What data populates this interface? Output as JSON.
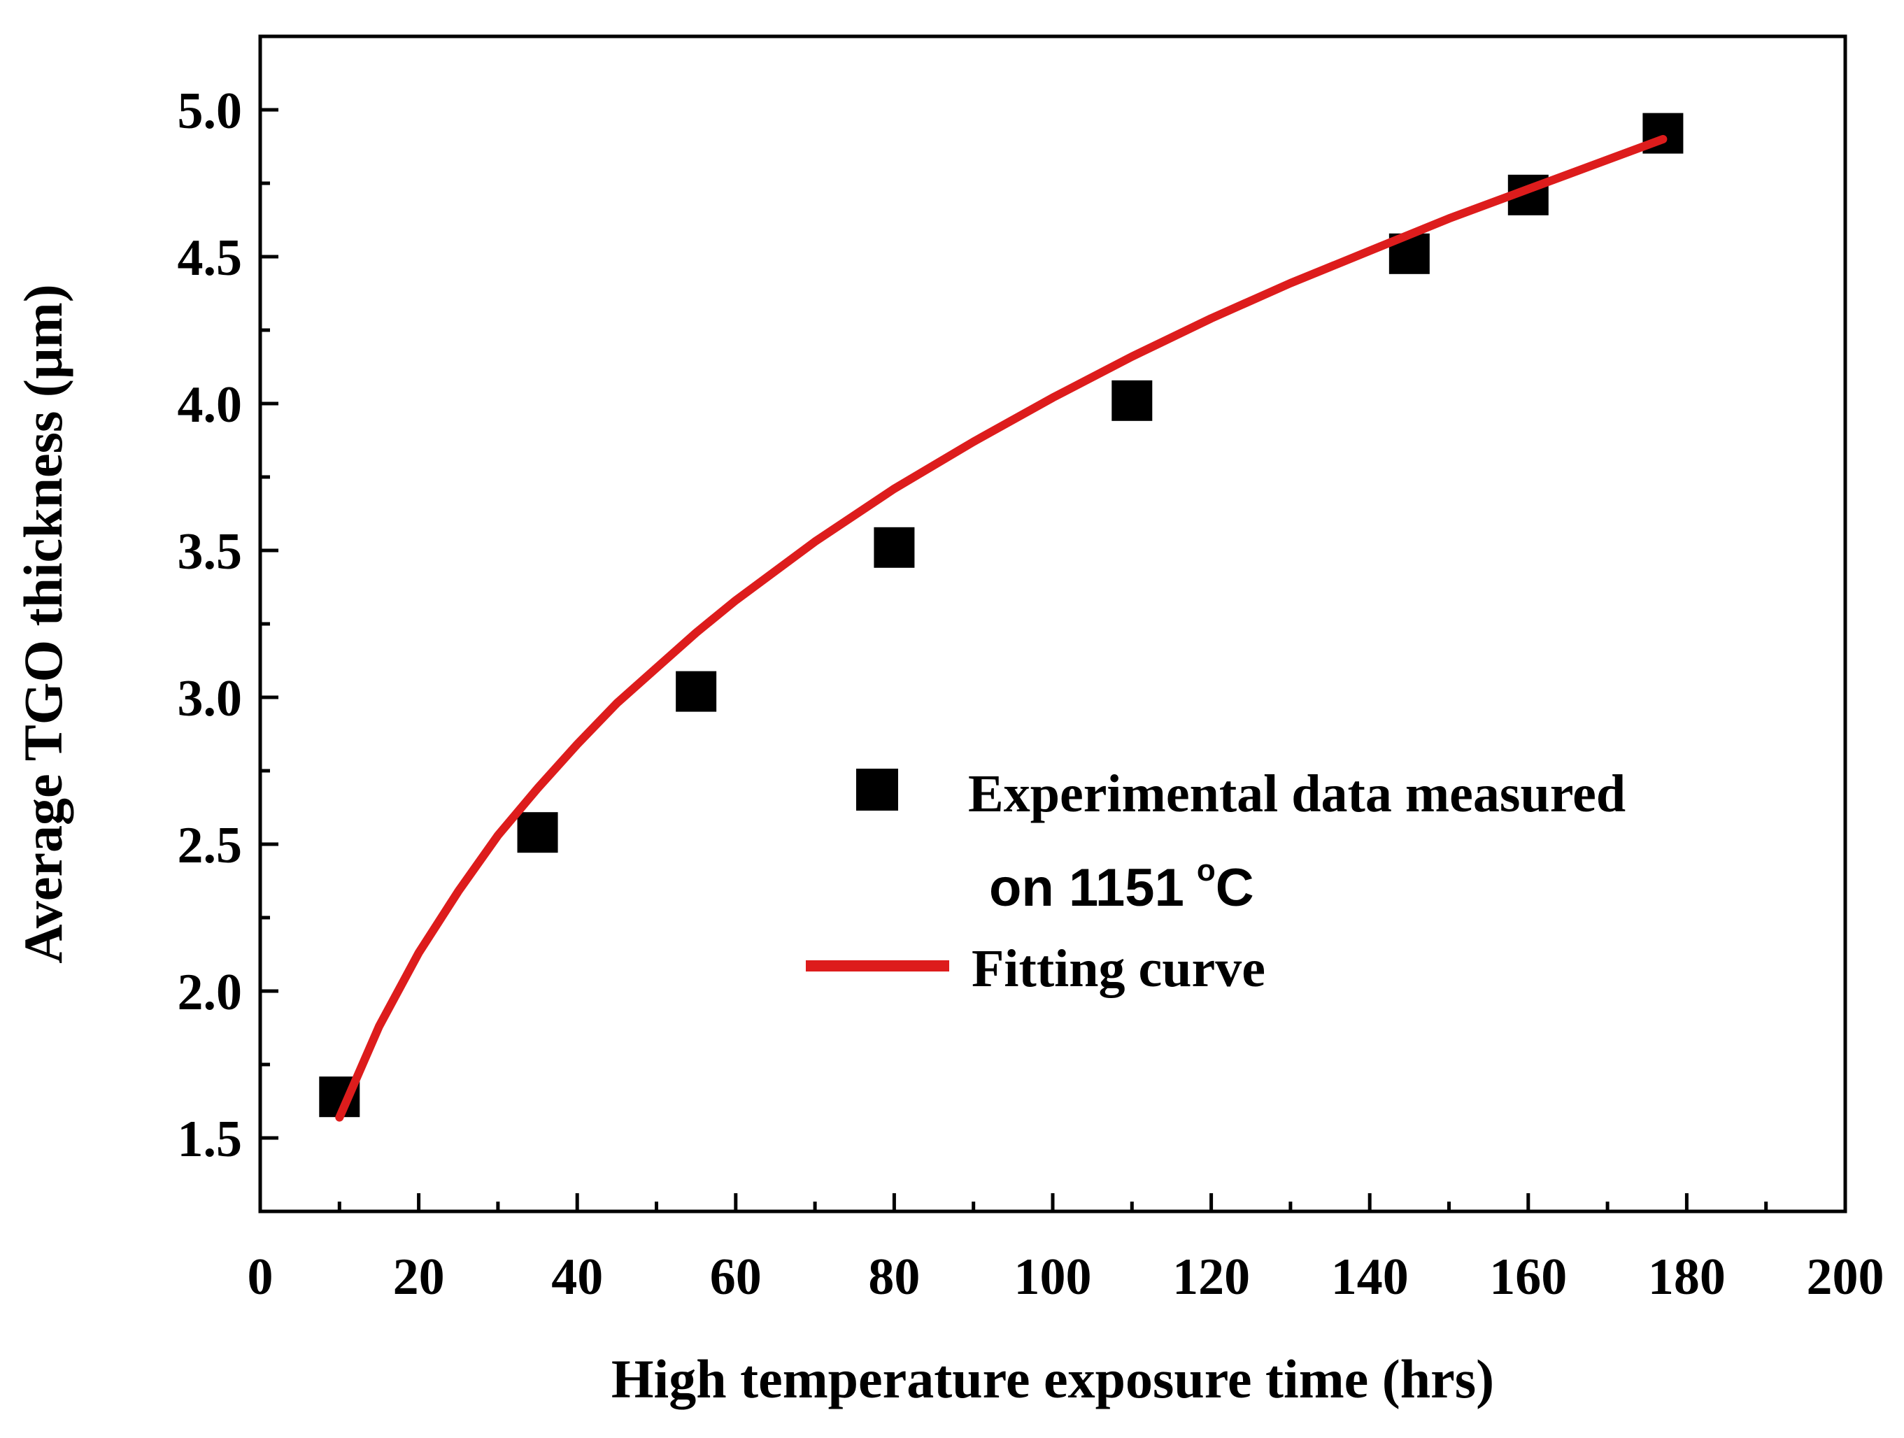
{
  "chart_data": {
    "type": "scatter",
    "xlabel": "High temperature exposure time (hrs)",
    "ylabel": "Average TGO thickness (µm)",
    "xlim": [
      0,
      200
    ],
    "ylim": [
      1.25,
      5.25
    ],
    "xticks": [
      0,
      20,
      40,
      60,
      80,
      100,
      120,
      140,
      160,
      180,
      200
    ],
    "xtick_labels": [
      "0",
      "20",
      "40",
      "60",
      "80",
      "100",
      "120",
      "140",
      "160",
      "180",
      "200"
    ],
    "yticks": [
      1.5,
      2.0,
      2.5,
      3.0,
      3.5,
      4.0,
      4.5,
      5.0
    ],
    "ytick_labels": [
      "1.5",
      "2.0",
      "2.5",
      "3.0",
      "3.5",
      "4.0",
      "4.5",
      "5.0"
    ],
    "grid": false,
    "legend_position": "center-right",
    "series": [
      {
        "name": "Experimental data measured",
        "name_line2": "on 1151",
        "name_unit_degree": "o",
        "name_unit": "C",
        "kind": "markers",
        "marker": "square",
        "color": "#000000",
        "x": [
          10,
          35,
          55,
          80,
          110,
          145,
          160,
          177
        ],
        "y": [
          1.64,
          2.54,
          3.02,
          3.51,
          4.01,
          4.51,
          4.71,
          4.92
        ]
      },
      {
        "name": "Fitting curve",
        "kind": "line",
        "color": "#dd1c1c",
        "x": [
          10,
          15,
          20,
          25,
          30,
          35,
          40,
          45,
          50,
          55,
          60,
          70,
          80,
          90,
          100,
          110,
          120,
          130,
          140,
          150,
          160,
          170,
          177
        ],
        "y": [
          1.57,
          1.88,
          2.13,
          2.34,
          2.53,
          2.69,
          2.84,
          2.98,
          3.1,
          3.22,
          3.33,
          3.53,
          3.71,
          3.87,
          4.02,
          4.16,
          4.29,
          4.41,
          4.52,
          4.63,
          4.73,
          4.83,
          4.9
        ]
      }
    ]
  }
}
